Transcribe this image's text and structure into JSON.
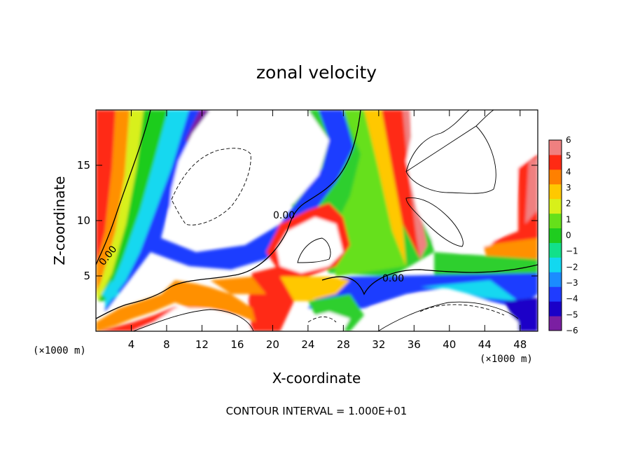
{
  "chart_data": {
    "type": "heatmap",
    "title": "zonal velocity",
    "xlabel": "X-coordinate",
    "ylabel": "Z-coordinate",
    "x_unit": "(×1000 m)",
    "y_unit": "(×1000 m)",
    "xlim": [
      0,
      50
    ],
    "ylim": [
      0,
      20
    ],
    "xticks": [
      4,
      8,
      12,
      16,
      20,
      24,
      28,
      32,
      36,
      40,
      44,
      48
    ],
    "yticks": [
      5,
      10,
      15
    ],
    "colorbar": {
      "values": [
        -6,
        -5,
        -4,
        -3,
        -2,
        -1,
        0,
        1,
        2,
        3,
        4,
        5,
        6
      ],
      "labels": [
        "6",
        "5",
        "4",
        "3",
        "2",
        "1",
        "0",
        "−1",
        "−2",
        "−3",
        "−4",
        "−5",
        "−6"
      ],
      "colors": [
        "#7b1fa2",
        "#1a00c8",
        "#1f3cff",
        "#1b8cff",
        "#12d8f0",
        "#12e08a",
        "#1fcc1f",
        "#66e01a",
        "#d8f01a",
        "#ffc800",
        "#ff8000",
        "#ff2a14",
        "#f08080"
      ]
    },
    "contour_labels": [
      "0.00",
      "0.00",
      "0.00"
    ],
    "grid": false,
    "legend": "colorbar-right"
  },
  "footer": "CONTOUR INTERVAL = 1.000E+01",
  "axis": {
    "x_unit_text": "(×1000 m)",
    "y_unit_text": "(×1000 m)"
  }
}
